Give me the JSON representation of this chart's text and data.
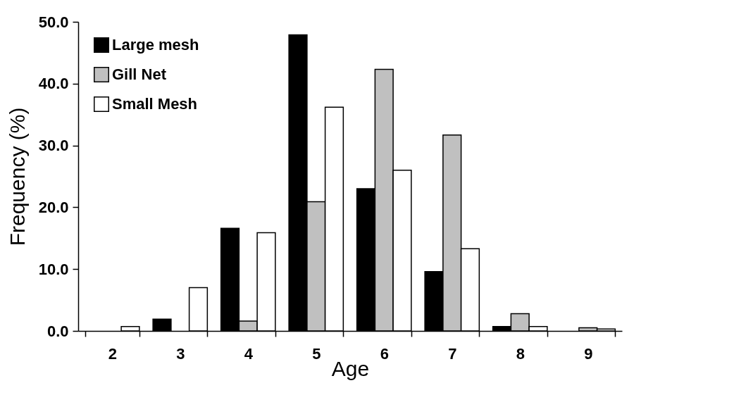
{
  "chart_data": {
    "type": "bar",
    "xlabel": "Age",
    "ylabel": "Frequency (%)",
    "categories": [
      "2",
      "3",
      "4",
      "5",
      "6",
      "7",
      "8",
      "9"
    ],
    "series": [
      {
        "name": "Large mesh",
        "color": "#000000",
        "values": [
          null,
          1.9,
          16.6,
          47.9,
          23.0,
          9.6,
          0.7,
          null
        ]
      },
      {
        "name": "Gill Net",
        "color": "#c0c0c0",
        "values": [
          null,
          null,
          1.6,
          20.9,
          42.3,
          31.7,
          2.8,
          0.5
        ]
      },
      {
        "name": "Small Mesh",
        "color": "#ffffff",
        "values": [
          0.7,
          7.0,
          15.9,
          36.2,
          26.0,
          13.3,
          0.7,
          0.3
        ]
      }
    ],
    "ylim": [
      0,
      50
    ],
    "yticks": [
      {
        "value": 0,
        "label": "0.0"
      },
      {
        "value": 10,
        "label": "10.0"
      },
      {
        "value": 20,
        "label": "20.0"
      },
      {
        "value": 30,
        "label": "30.0"
      },
      {
        "value": 40,
        "label": "40.0"
      },
      {
        "value": 50,
        "label": "50.0"
      }
    ],
    "grid": false,
    "legend": "top left"
  }
}
